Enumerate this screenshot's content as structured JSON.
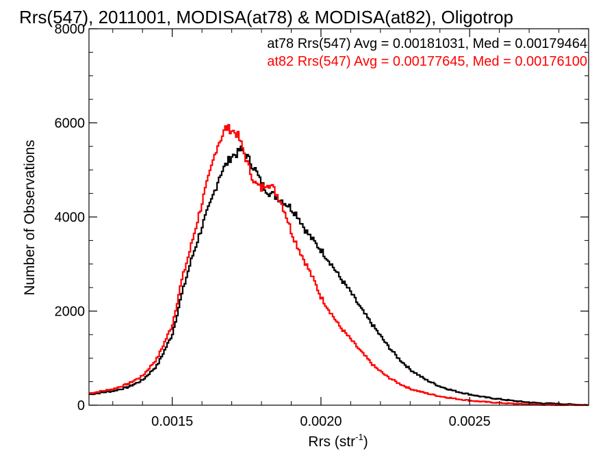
{
  "chart_data": {
    "type": "line",
    "step": true,
    "title": "Rrs(547), 2011001, MODISA(at78) & MODISA(at82), Oligotrop",
    "xlabel": "Rrs (str",
    "xlabel_sup": "-1",
    "xlabel_close": ")",
    "ylabel": "Number of Observations",
    "xlim": [
      0.00122,
      0.0029
    ],
    "ylim": [
      0,
      8000
    ],
    "x_ticks": [
      0.0015,
      0.002,
      0.0025
    ],
    "x_tick_labels": [
      "0.0015",
      "0.0020",
      "0.0025"
    ],
    "y_ticks": [
      0,
      2000,
      4000,
      6000,
      8000
    ],
    "y_tick_labels": [
      "0",
      "2000",
      "4000",
      "6000",
      "8000"
    ],
    "grid": false,
    "legend_position": "top-right",
    "series": [
      {
        "name": "at78",
        "color": "#000000",
        "annotation": "at78 Rrs(547) Avg = 0.00181031, Med = 0.00179464",
        "x": [
          0.00122,
          0.0013,
          0.00135,
          0.0014,
          0.00145,
          0.0015,
          0.00153,
          0.00156,
          0.0016,
          0.00163,
          0.00166,
          0.00168,
          0.0017,
          0.00172,
          0.00173,
          0.00175,
          0.00178,
          0.0018,
          0.00183,
          0.00186,
          0.00189,
          0.00192,
          0.00195,
          0.00198,
          0.002,
          0.00203,
          0.00206,
          0.0021,
          0.00214,
          0.00218,
          0.00222,
          0.00226,
          0.0023,
          0.00235,
          0.0024,
          0.00245,
          0.0025,
          0.00255,
          0.0026,
          0.00265,
          0.0027,
          0.00275,
          0.0028,
          0.00285,
          0.0029
        ],
        "y": [
          230,
          300,
          380,
          530,
          850,
          1500,
          2300,
          3000,
          3800,
          4300,
          4900,
          5100,
          5300,
          5350,
          5450,
          5300,
          5000,
          4700,
          4500,
          4400,
          4250,
          4050,
          3700,
          3450,
          3300,
          3050,
          2750,
          2400,
          2000,
          1650,
          1300,
          1000,
          760,
          550,
          400,
          300,
          230,
          170,
          130,
          90,
          60,
          40,
          30,
          15,
          5
        ]
      },
      {
        "name": "at82",
        "color": "#ff0000",
        "annotation": "at82 Rrs(547) Avg = 0.00177645, Med = 0.00176100",
        "x": [
          0.00122,
          0.0013,
          0.00135,
          0.0014,
          0.00145,
          0.0015,
          0.00153,
          0.00156,
          0.0016,
          0.00163,
          0.00165,
          0.00167,
          0.00168,
          0.0017,
          0.00172,
          0.00174,
          0.00176,
          0.00178,
          0.0018,
          0.00182,
          0.00184,
          0.00186,
          0.00188,
          0.0019,
          0.00192,
          0.00195,
          0.00198,
          0.002,
          0.00203,
          0.00206,
          0.0021,
          0.00214,
          0.00218,
          0.00222,
          0.00226,
          0.0023,
          0.00235,
          0.0024,
          0.00245,
          0.0025,
          0.00255,
          0.0026,
          0.00265,
          0.0027,
          0.00275,
          0.0028,
          0.00285,
          0.0029
        ],
        "y": [
          250,
          340,
          450,
          620,
          1000,
          1700,
          2600,
          3300,
          4300,
          5000,
          5500,
          5750,
          5900,
          5850,
          5750,
          5400,
          5000,
          4700,
          4600,
          4750,
          4600,
          4400,
          4100,
          3700,
          3400,
          3000,
          2600,
          2300,
          2000,
          1700,
          1400,
          1100,
          820,
          620,
          470,
          350,
          260,
          190,
          140,
          100,
          70,
          50,
          30,
          20,
          10,
          5,
          3,
          1
        ]
      }
    ]
  }
}
